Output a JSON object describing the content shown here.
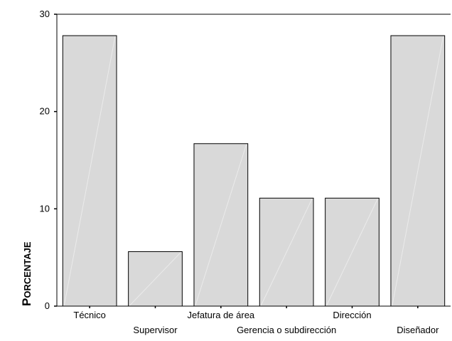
{
  "chart_data": {
    "type": "bar",
    "categories": [
      "Técnico",
      "Supervisor",
      "Jefatura de área",
      "Gerencia o subdirección",
      "Dirección",
      "Diseñador"
    ],
    "values": [
      27.8,
      5.6,
      16.7,
      11.1,
      11.1,
      27.8
    ],
    "ylabel": "Porcentaje",
    "yticks": [
      0,
      10,
      20,
      30
    ],
    "ylim": [
      0,
      30
    ],
    "bar_color": "#d9d9d9",
    "grid": false,
    "label_stagger": true
  }
}
